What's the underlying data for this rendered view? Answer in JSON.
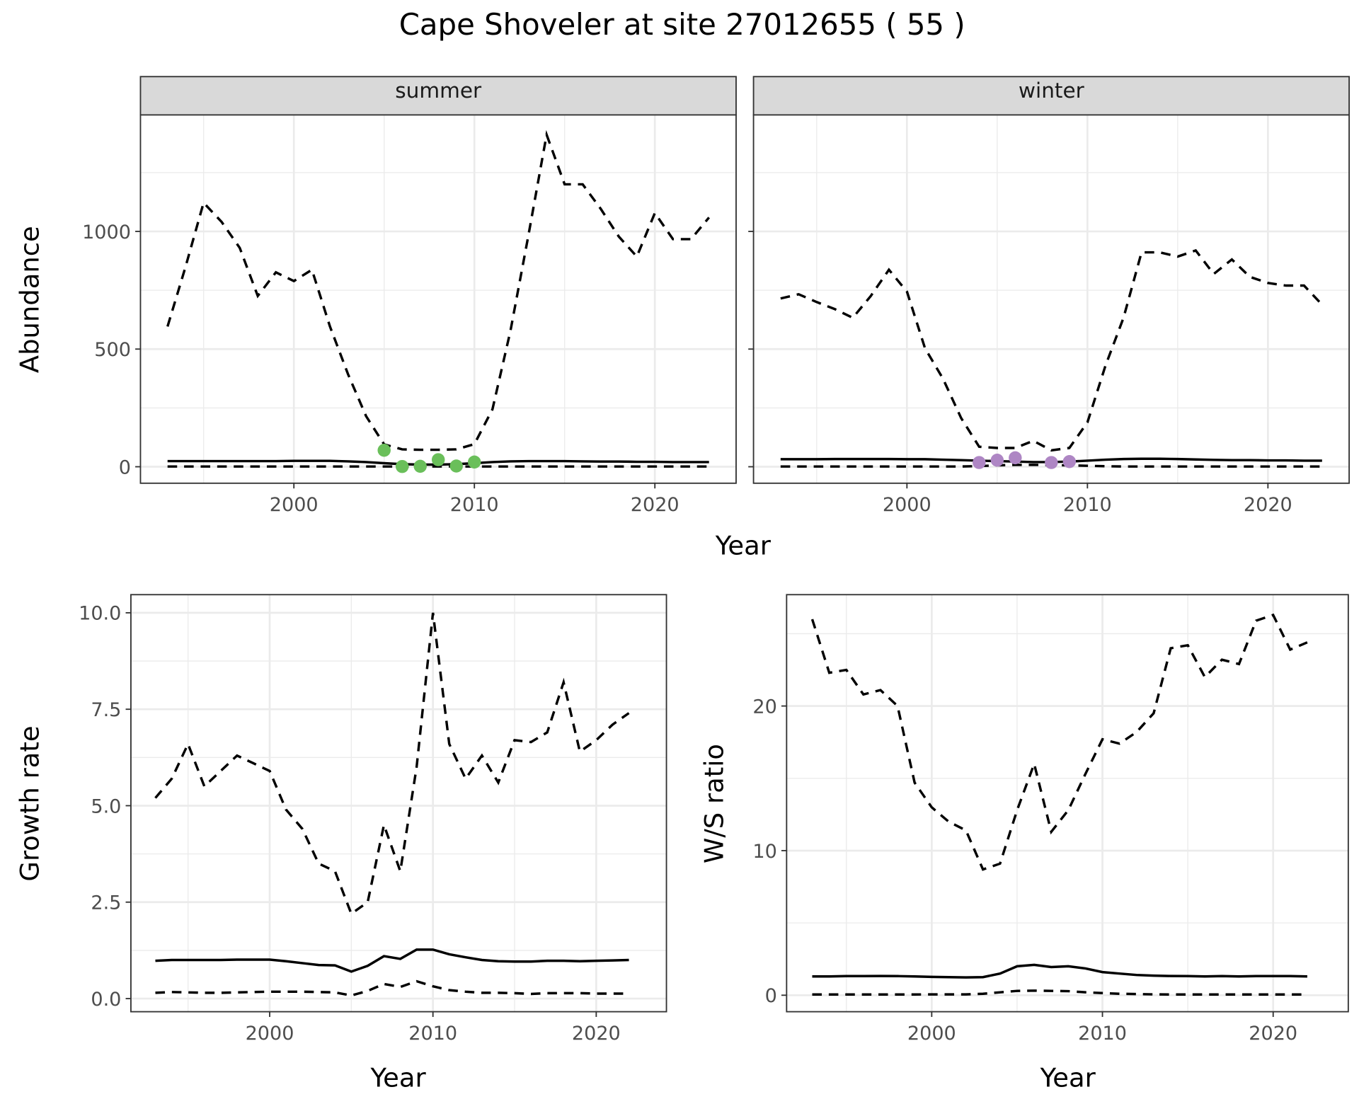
{
  "title": "Cape Shoveler at site 27012655 ( 55 )",
  "chart_data": [
    {
      "type": "line",
      "facet": "summer",
      "xlabel": "Year",
      "ylabel": "Abundance",
      "xlim": [
        1991.5,
        2024.5
      ],
      "ylim": [
        -70,
        1495
      ],
      "xticks": [
        2000,
        2010,
        2020
      ],
      "yticks": [
        0,
        500,
        1000
      ],
      "grid": true,
      "x": [
        1993,
        1994,
        1995,
        1996,
        1997,
        1998,
        1999,
        2000,
        2001,
        2002,
        2003,
        2004,
        2005,
        2006,
        2007,
        2008,
        2009,
        2010,
        2011,
        2012,
        2013,
        2014,
        2015,
        2016,
        2017,
        2018,
        2019,
        2020,
        2021,
        2022,
        2023
      ],
      "series": [
        {
          "style": "dashed",
          "values": [
            596,
            850,
            1122,
            1040,
            930,
            726,
            826,
            789,
            837,
            596,
            393,
            215,
            95,
            74,
            72,
            72,
            74,
            96,
            244,
            578,
            985,
            1411,
            1200,
            1200,
            1096,
            978,
            893,
            1078,
            967,
            967,
            1059
          ]
        },
        {
          "style": "solid",
          "values": [
            24,
            24,
            24,
            24,
            24,
            24,
            24,
            25,
            25,
            25,
            23,
            20,
            15,
            11,
            9,
            9,
            11,
            15,
            20,
            23,
            24,
            24,
            24,
            23,
            22,
            22,
            21,
            21,
            20,
            20,
            20
          ]
        },
        {
          "style": "dashed",
          "values": [
            1,
            1,
            1,
            1,
            1,
            1,
            1,
            1,
            1,
            1,
            1,
            1,
            1,
            1,
            1,
            1,
            1,
            1,
            1,
            1,
            1,
            1,
            1,
            1,
            1,
            1,
            1,
            1,
            1,
            1,
            1
          ]
        }
      ],
      "points": {
        "color": "#6abf5a",
        "x": [
          2005,
          2006,
          2007,
          2008,
          2009,
          2010
        ],
        "y": [
          70,
          1,
          2,
          30,
          3,
          20
        ]
      }
    },
    {
      "type": "line",
      "facet": "winter",
      "xlabel": "Year",
      "ylabel": "Abundance",
      "xlim": [
        1991.5,
        2024.5
      ],
      "ylim": [
        -70,
        1495
      ],
      "xticks": [
        2000,
        2010,
        2020
      ],
      "yticks": [
        0,
        500,
        1000
      ],
      "grid": true,
      "x": [
        1993,
        1994,
        1995,
        1996,
        1997,
        1998,
        1999,
        2000,
        2001,
        2002,
        2003,
        2004,
        2005,
        2006,
        2007,
        2008,
        2009,
        2010,
        2011,
        2012,
        2013,
        2014,
        2015,
        2016,
        2017,
        2018,
        2019,
        2020,
        2021,
        2022,
        2023
      ],
      "series": [
        {
          "style": "dashed",
          "values": [
            715,
            733,
            700,
            670,
            633,
            726,
            837,
            744,
            504,
            374,
            207,
            85,
            80,
            80,
            110,
            70,
            80,
            189,
            430,
            633,
            911,
            911,
            893,
            919,
            819,
            881,
            807,
            781,
            770,
            770,
            689
          ]
        },
        {
          "style": "solid",
          "values": [
            32,
            32,
            32,
            33,
            33,
            33,
            33,
            32,
            32,
            30,
            28,
            26,
            24,
            22,
            20,
            20,
            22,
            26,
            30,
            33,
            34,
            34,
            33,
            31,
            29,
            28,
            28,
            27,
            27,
            26,
            26
          ]
        },
        {
          "style": "dashed",
          "values": [
            1,
            1,
            1,
            1,
            1,
            1,
            1,
            1,
            1,
            1,
            1,
            3,
            6,
            8,
            8,
            7,
            6,
            4,
            2,
            1,
            1,
            1,
            1,
            1,
            1,
            1,
            1,
            1,
            1,
            1,
            1
          ]
        }
      ],
      "points": {
        "color": "#ae86c4",
        "x": [
          2004,
          2005,
          2006,
          2008,
          2009
        ],
        "y": [
          18,
          28,
          38,
          18,
          22
        ]
      }
    },
    {
      "type": "line",
      "xlabel": "Year",
      "ylabel": "Growth rate",
      "xlim": [
        1991.5,
        2024.3
      ],
      "ylim": [
        -0.34,
        10.47
      ],
      "xticks": [
        2000,
        2010,
        2020
      ],
      "yticks": [
        0.0,
        2.5,
        5.0,
        7.5,
        10.0
      ],
      "ytick_labels": [
        "0.0",
        "2.5",
        "5.0",
        "7.5",
        "10.0"
      ],
      "grid": true,
      "x": [
        1993,
        1994,
        1995,
        1996,
        1997,
        1998,
        1999,
        2000,
        2001,
        2002,
        2003,
        2004,
        2005,
        2006,
        2007,
        2008,
        2009,
        2010,
        2011,
        2012,
        2013,
        2014,
        2015,
        2016,
        2017,
        2018,
        2019,
        2020,
        2021,
        2022
      ],
      "series": [
        {
          "style": "dashed",
          "values": [
            5.2,
            5.7,
            6.6,
            5.5,
            5.9,
            6.3,
            6.1,
            5.9,
            4.9,
            4.4,
            3.5,
            3.3,
            2.2,
            2.5,
            4.5,
            3.3,
            6.0,
            10.0,
            6.6,
            5.7,
            6.3,
            5.6,
            6.7,
            6.65,
            6.9,
            8.2,
            6.4,
            6.7,
            7.1,
            7.4
          ]
        },
        {
          "style": "solid",
          "values": [
            0.98,
            1.0,
            1.0,
            1.0,
            1.0,
            1.01,
            1.01,
            1.01,
            0.97,
            0.92,
            0.87,
            0.86,
            0.7,
            0.85,
            1.1,
            1.03,
            1.27,
            1.27,
            1.15,
            1.07,
            1.0,
            0.97,
            0.96,
            0.96,
            0.98,
            0.98,
            0.97,
            0.98,
            0.99,
            1.0
          ]
        },
        {
          "style": "dashed",
          "values": [
            0.15,
            0.17,
            0.16,
            0.15,
            0.15,
            0.16,
            0.17,
            0.18,
            0.18,
            0.18,
            0.17,
            0.16,
            0.08,
            0.2,
            0.38,
            0.3,
            0.45,
            0.32,
            0.22,
            0.18,
            0.15,
            0.15,
            0.14,
            0.12,
            0.14,
            0.14,
            0.14,
            0.13,
            0.13,
            0.13
          ]
        }
      ]
    },
    {
      "type": "line",
      "xlabel": "Year",
      "ylabel": "W/S ratio",
      "xlim": [
        1991.5,
        2024.4
      ],
      "ylim": [
        -1.14,
        27.7
      ],
      "xticks": [
        2000,
        2010,
        2020
      ],
      "yticks": [
        0,
        10,
        20
      ],
      "grid": true,
      "x": [
        1993,
        1994,
        1995,
        1996,
        1997,
        1998,
        1999,
        2000,
        2001,
        2002,
        2003,
        2004,
        2005,
        2006,
        2007,
        2008,
        2009,
        2010,
        2011,
        2012,
        2013,
        2014,
        2015,
        2016,
        2017,
        2018,
        2019,
        2020,
        2021,
        2022
      ],
      "series": [
        {
          "style": "dashed",
          "values": [
            26,
            22.3,
            22.5,
            20.8,
            21.1,
            20,
            14.7,
            13,
            12,
            11.4,
            8.7,
            9.1,
            12.8,
            16,
            11.3,
            12.8,
            15.3,
            17.7,
            17.4,
            18.2,
            19.5,
            24,
            24.2,
            22,
            23.2,
            22.9,
            25.9,
            26.3,
            23.9,
            24.4
          ]
        },
        {
          "style": "solid",
          "values": [
            1.3,
            1.3,
            1.32,
            1.32,
            1.33,
            1.32,
            1.3,
            1.27,
            1.25,
            1.23,
            1.25,
            1.5,
            2.0,
            2.1,
            1.95,
            2.0,
            1.85,
            1.6,
            1.5,
            1.4,
            1.35,
            1.33,
            1.32,
            1.3,
            1.32,
            1.3,
            1.32,
            1.32,
            1.32,
            1.3
          ]
        },
        {
          "style": "dashed",
          "values": [
            0.05,
            0.05,
            0.05,
            0.05,
            0.05,
            0.05,
            0.05,
            0.06,
            0.06,
            0.06,
            0.1,
            0.2,
            0.3,
            0.32,
            0.3,
            0.28,
            0.2,
            0.15,
            0.1,
            0.08,
            0.06,
            0.05,
            0.05,
            0.05,
            0.05,
            0.05,
            0.05,
            0.05,
            0.05,
            0.05
          ]
        }
      ]
    }
  ]
}
